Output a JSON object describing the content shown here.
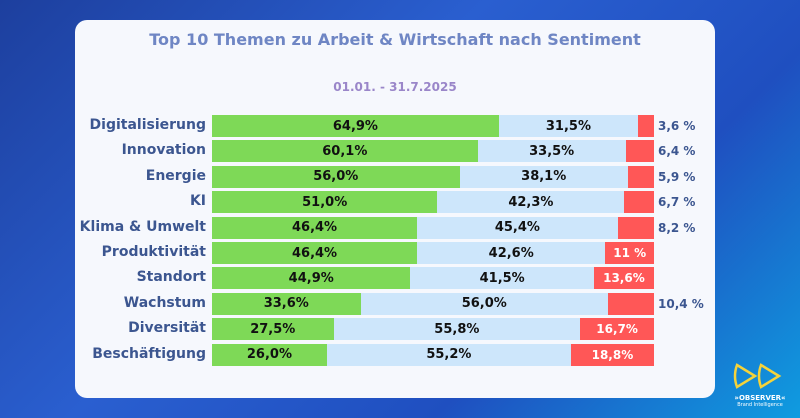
{
  "chart_data": {
    "type": "bar",
    "stacked": true,
    "orientation": "horizontal",
    "title": "Top 10 Themen zu Arbeit & Wirtschaft nach Sentiment",
    "subtitle": "01.01. - 31.7.2025",
    "categories": [
      "Digitalisierung",
      "Innovation",
      "Energie",
      "KI",
      "Klima & Umwelt",
      "Produktivität",
      "Standort",
      "Wachstum",
      "Diversität",
      "Beschäftigung"
    ],
    "series": [
      {
        "values": [
          64.9,
          60.1,
          56.0,
          51.0,
          46.4,
          46.4,
          44.9,
          33.6,
          27.5,
          26.0
        ],
        "labels": [
          "64,9%",
          "60,1%",
          "56,0%",
          "51,0%",
          "46,4%",
          "46,4%",
          "44,9%",
          "33,6%",
          "27,5%",
          "26,0%"
        ],
        "color": "#7ed957"
      },
      {
        "values": [
          31.5,
          33.5,
          38.1,
          42.3,
          45.4,
          42.6,
          41.5,
          56.0,
          55.8,
          55.2
        ],
        "labels": [
          "31,5%",
          "33,5%",
          "38,1%",
          "42,3%",
          "45,4%",
          "42,6%",
          "41,5%",
          "56,0%",
          "55,8%",
          "55,2%"
        ],
        "color": "#cde6fb"
      },
      {
        "values": [
          3.6,
          6.4,
          5.9,
          6.7,
          8.2,
          11,
          13.6,
          10.4,
          16.7,
          18.8
        ],
        "labels": [
          "3,6 %",
          "6,4 %",
          "5,9 %",
          "6,7 %",
          "8,2 %",
          "11 %",
          "13,6%",
          "10,4 %",
          "16,7%",
          "18,8%"
        ],
        "color": "#ff5757"
      }
    ],
    "xlim": [
      0,
      100
    ]
  },
  "logo": {
    "name": "»OBSERVER«",
    "tagline": "Brand Intelligence"
  }
}
